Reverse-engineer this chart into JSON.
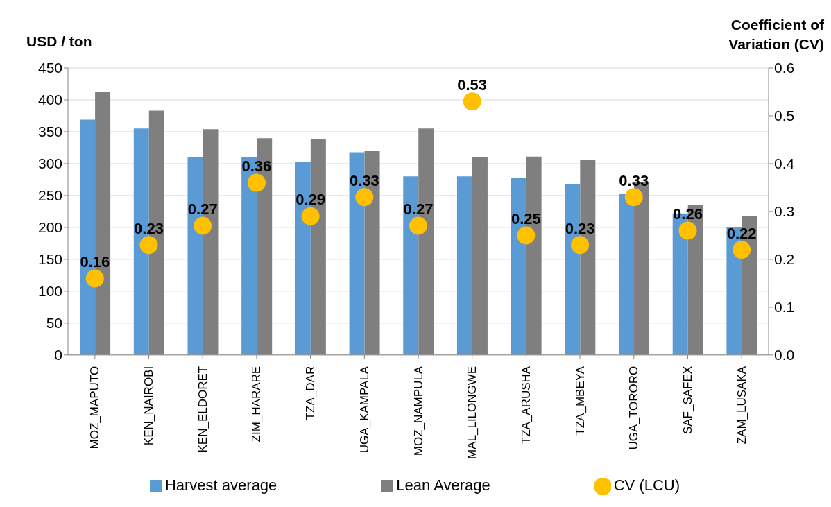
{
  "chart_data": {
    "type": "bar",
    "ylabel": "USD / ton",
    "y2label": "Coefficient of Variation (CV)",
    "categories": [
      "MOZ_MAPUTO",
      "KEN_NAIROBI",
      "KEN_ELDORET",
      "ZIM_HARARE",
      "TZA_DAR",
      "UGA_KAMPALA",
      "MOZ_NAMPULA",
      "MAL_LILONGWE",
      "TZA_ARUSHA",
      "TZA_MBEYA",
      "UGA_TORORO",
      "SAF_SAFEX",
      "ZAM_LUSAKA"
    ],
    "series": [
      {
        "name": "Harvest average",
        "color": "#5b9bd5",
        "values": [
          369,
          355,
          310,
          310,
          302,
          318,
          280,
          280,
          277,
          268,
          253,
          222,
          200
        ]
      },
      {
        "name": "Lean Average",
        "color": "#7f7f7f",
        "values": [
          412,
          383,
          354,
          340,
          339,
          320,
          355,
          310,
          311,
          306,
          271,
          235,
          218
        ]
      },
      {
        "name": "CV (LCU)",
        "type": "scatter",
        "axis": "y2",
        "color": "#ffc000",
        "marker": "circle",
        "values": [
          0.16,
          0.23,
          0.27,
          0.36,
          0.29,
          0.33,
          0.27,
          0.53,
          0.25,
          0.23,
          0.33,
          0.26,
          0.22
        ],
        "value_labels": [
          "0.16",
          "0.23",
          "0.27",
          "0.36",
          "0.29",
          "0.33",
          "0.27",
          "0.53",
          "0.25",
          "0.23",
          "0.33",
          "0.26",
          "0.22"
        ]
      }
    ],
    "ylim": [
      0,
      450
    ],
    "yticks": [
      0,
      50,
      100,
      150,
      200,
      250,
      300,
      350,
      400,
      450
    ],
    "y2lim": [
      0,
      0.6
    ],
    "y2ticks": [
      {
        "value": 0,
        "label": "0.0"
      },
      0.1,
      0.2,
      0.3,
      0.4,
      0.5,
      0.6
    ],
    "grid": "y",
    "legend": "bottom"
  }
}
